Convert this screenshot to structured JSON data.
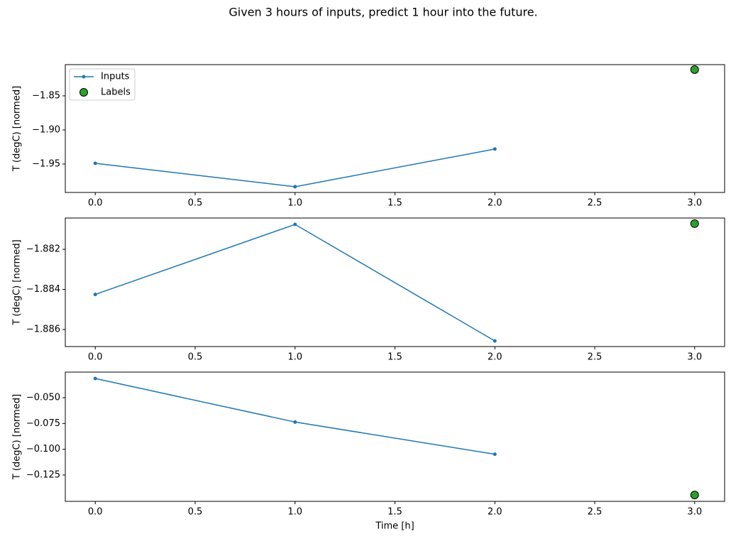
{
  "chart_data": [
    {
      "type": "line",
      "title": "Given 3 hours of inputs, predict 1 hour into the future.",
      "ylabel": "T (degC) [normed]",
      "legend": "upper left",
      "x": [
        0,
        1,
        2,
        3
      ],
      "series": [
        {
          "name": "Inputs",
          "type": "line",
          "color": "#1f77b4",
          "values": [
            -1.949,
            -1.9833,
            -1.928,
            null
          ]
        },
        {
          "name": "Labels",
          "type": "scatter",
          "color": "#2ca02c",
          "values": [
            null,
            null,
            null,
            -1.8115
          ]
        }
      ],
      "xlim": [
        -0.15,
        3.15
      ],
      "xticks": [
        {
          "value": 0,
          "label": "0.0"
        },
        0.5,
        {
          "value": 1,
          "label": "1.0"
        },
        1.5,
        {
          "value": 2,
          "label": "2.0"
        },
        2.5,
        {
          "value": 3,
          "label": "3.0"
        }
      ],
      "ylim": [
        -1.9917,
        -1.8042
      ],
      "yticks": [
        {
          "value": -1.95,
          "label": "−1.95"
        },
        {
          "value": -1.9,
          "label": "−1.90"
        },
        {
          "value": -1.85,
          "label": "−1.85"
        }
      ]
    },
    {
      "type": "line",
      "ylabel": "T (degC) [normed]",
      "x": [
        0,
        1,
        2,
        3
      ],
      "series": [
        {
          "type": "line",
          "color": "#1f77b4",
          "values": [
            -1.88425,
            -1.88076,
            -1.88657,
            null
          ]
        },
        {
          "type": "scatter",
          "color": "#2ca02c",
          "values": [
            null,
            null,
            null,
            -1.88072
          ]
        }
      ],
      "xlim": [
        -0.15,
        3.15
      ],
      "xticks": [
        {
          "value": 0,
          "label": "0.0"
        },
        0.5,
        {
          "value": 1,
          "label": "1.0"
        },
        1.5,
        {
          "value": 2,
          "label": "2.0"
        },
        2.5,
        {
          "value": 3,
          "label": "3.0"
        }
      ],
      "ylim": [
        -1.88685,
        -1.88044
      ],
      "yticks": [
        {
          "value": -1.886,
          "label": "−1.886"
        },
        {
          "value": -1.884,
          "label": "−1.884"
        },
        {
          "value": -1.882,
          "label": "−1.882"
        }
      ]
    },
    {
      "type": "line",
      "ylabel": "T (degC) [normed]",
      "xlabel": "Time [h]",
      "x": [
        0,
        1,
        2,
        3
      ],
      "series": [
        {
          "type": "line",
          "color": "#1f77b4",
          "values": [
            -0.0314,
            -0.0736,
            -0.1048,
            null
          ]
        },
        {
          "type": "scatter",
          "color": "#2ca02c",
          "values": [
            null,
            null,
            null,
            -0.1443
          ]
        }
      ],
      "xlim": [
        -0.15,
        3.15
      ],
      "xticks": [
        {
          "value": 0,
          "label": "0.0"
        },
        0.5,
        {
          "value": 1,
          "label": "1.0"
        },
        1.5,
        {
          "value": 2,
          "label": "2.0"
        },
        2.5,
        {
          "value": 3,
          "label": "3.0"
        }
      ],
      "ylim": [
        -0.1505,
        -0.0252
      ],
      "yticks": [
        {
          "value": -0.125,
          "label": "−0.125"
        },
        {
          "value": -0.1,
          "label": "−0.100"
        },
        {
          "value": -0.075,
          "label": "−0.075"
        },
        {
          "value": -0.05,
          "label": "−0.050"
        }
      ]
    }
  ]
}
